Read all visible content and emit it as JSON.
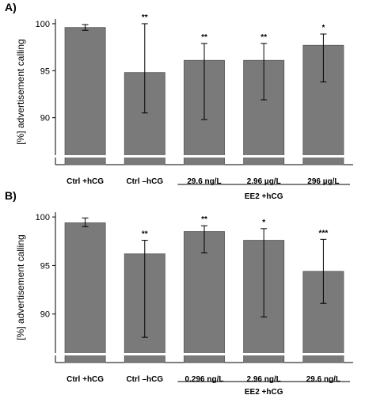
{
  "chart_data": [
    {
      "type": "bar",
      "panel": "A)",
      "ylabel": "[%] advertisement calling",
      "ylim": [
        85,
        100.5
      ],
      "yticks": [
        90,
        95,
        100
      ],
      "categories": [
        "Ctrl +hCG",
        "Ctrl –hCG",
        "29.6 ng/L",
        "2.96 µg/L",
        "296 µg/L"
      ],
      "values": [
        99.6,
        94.8,
        96.1,
        96.1,
        97.7
      ],
      "error_low": [
        99.3,
        90.5,
        89.8,
        91.9,
        93.8
      ],
      "error_high": [
        99.9,
        100.0,
        97.9,
        97.9,
        98.9
      ],
      "significance": [
        "",
        "**",
        "**",
        "**",
        "*"
      ],
      "group": {
        "label": "EE2 +hCG",
        "from": 2,
        "to": 4
      },
      "color": "#7a7a7a"
    },
    {
      "type": "bar",
      "panel": "B)",
      "ylabel": "[%] advertisement calling",
      "ylim": [
        85,
        100.5
      ],
      "yticks": [
        90,
        95,
        100
      ],
      "categories": [
        "Ctrl +hCG",
        "Ctrl –hCG",
        "0.296 ng/L",
        "2.96 ng/L",
        "29.6 ng/L"
      ],
      "values": [
        99.4,
        96.2,
        98.5,
        97.6,
        94.4
      ],
      "error_low": [
        99.0,
        87.6,
        96.3,
        89.7,
        91.1
      ],
      "error_high": [
        99.9,
        97.6,
        99.1,
        98.8,
        97.7
      ],
      "significance": [
        "",
        "**",
        "**",
        "*",
        "***"
      ],
      "group": {
        "label": "EE2 +hCG",
        "from": 2,
        "to": 4
      },
      "color": "#7a7a7a"
    }
  ]
}
